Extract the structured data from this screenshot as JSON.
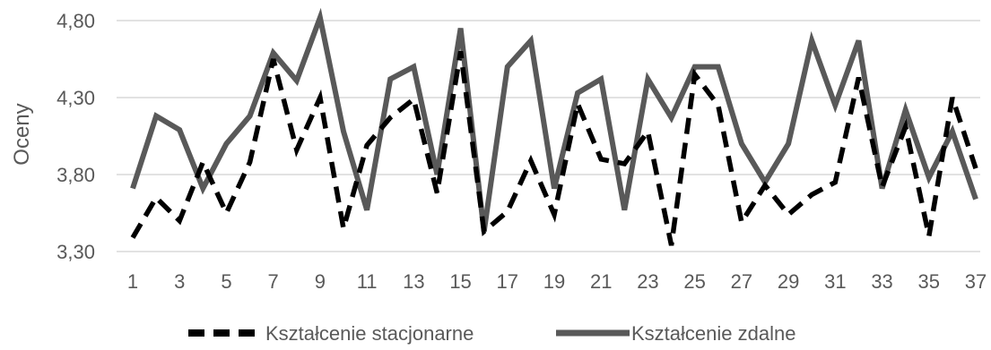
{
  "chart_data": {
    "type": "line",
    "title": "",
    "xlabel": "",
    "ylabel": "Oceny",
    "ylim": [
      3.3,
      4.8
    ],
    "yticks": [
      "3,30",
      "3,80",
      "4,30",
      "4,80"
    ],
    "ytick_values": [
      3.3,
      3.8,
      4.3,
      4.8
    ],
    "grid": true,
    "legend_position": "bottom",
    "x": [
      1,
      2,
      3,
      4,
      5,
      6,
      7,
      8,
      9,
      10,
      11,
      12,
      13,
      14,
      15,
      16,
      17,
      18,
      19,
      20,
      21,
      22,
      23,
      24,
      25,
      26,
      27,
      28,
      29,
      30,
      31,
      32,
      33,
      34,
      35,
      36,
      37
    ],
    "xtick_labels": [
      "1",
      "3",
      "5",
      "7",
      "9",
      "11",
      "13",
      "15",
      "17",
      "19",
      "21",
      "23",
      "25",
      "27",
      "29",
      "31",
      "33",
      "35",
      "37"
    ],
    "xtick_values": [
      1,
      3,
      5,
      7,
      9,
      11,
      13,
      15,
      17,
      19,
      21,
      23,
      25,
      27,
      29,
      31,
      33,
      35,
      37
    ],
    "series": [
      {
        "name": "Kształcenie stacjonarne",
        "color": "#000000",
        "dash": "dashed",
        "values": [
          3.39,
          3.65,
          3.5,
          3.88,
          3.55,
          3.88,
          4.55,
          3.96,
          4.3,
          3.45,
          3.99,
          4.17,
          4.29,
          3.68,
          4.6,
          3.43,
          3.56,
          3.89,
          3.54,
          4.26,
          3.9,
          3.87,
          4.08,
          3.34,
          4.45,
          4.25,
          3.49,
          3.73,
          3.54,
          3.67,
          3.75,
          4.43,
          3.72,
          4.11,
          3.4,
          4.3,
          3.84
        ]
      },
      {
        "name": "Kształcenie zdalne",
        "color": "#595959",
        "dash": "solid",
        "values": [
          3.71,
          4.18,
          4.09,
          3.71,
          4.0,
          4.18,
          4.59,
          4.41,
          4.82,
          4.08,
          3.57,
          4.42,
          4.5,
          3.8,
          4.75,
          3.43,
          4.5,
          4.67,
          3.71,
          4.33,
          4.42,
          3.57,
          4.42,
          4.17,
          4.5,
          4.5,
          4.0,
          3.75,
          4.0,
          4.67,
          4.25,
          4.67,
          3.71,
          4.22,
          3.78,
          4.08,
          3.64
        ]
      }
    ]
  }
}
